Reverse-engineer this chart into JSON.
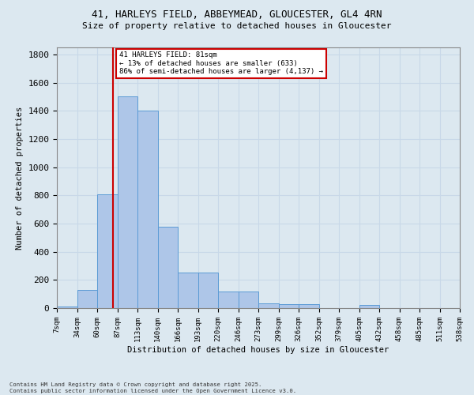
{
  "title_line1": "41, HARLEYS FIELD, ABBEYMEAD, GLOUCESTER, GL4 4RN",
  "title_line2": "Size of property relative to detached houses in Gloucester",
  "xlabel": "Distribution of detached houses by size in Gloucester",
  "ylabel": "Number of detached properties",
  "bin_labels": [
    "7sqm",
    "34sqm",
    "60sqm",
    "87sqm",
    "113sqm",
    "140sqm",
    "166sqm",
    "193sqm",
    "220sqm",
    "246sqm",
    "273sqm",
    "299sqm",
    "326sqm",
    "352sqm",
    "379sqm",
    "405sqm",
    "432sqm",
    "458sqm",
    "485sqm",
    "511sqm",
    "538sqm"
  ],
  "bar_values": [
    10,
    130,
    810,
    1500,
    1400,
    575,
    255,
    255,
    115,
    115,
    35,
    30,
    30,
    0,
    0,
    20,
    0,
    0,
    0,
    0
  ],
  "bar_color": "#aec6e8",
  "bar_edge_color": "#5b9bd5",
  "vline_x": 81,
  "bin_edges_sqm": [
    7,
    34,
    60,
    87,
    113,
    140,
    166,
    193,
    220,
    246,
    273,
    299,
    326,
    352,
    379,
    405,
    432,
    458,
    485,
    511,
    538
  ],
  "annotation_line1": "41 HARLEYS FIELD: 81sqm",
  "annotation_line2": "← 13% of detached houses are smaller (633)",
  "annotation_line3": "86% of semi-detached houses are larger (4,137) →",
  "annotation_box_color": "#ffffff",
  "annotation_box_edge": "#cc0000",
  "vline_color": "#cc0000",
  "ylim": [
    0,
    1850
  ],
  "yticks": [
    0,
    200,
    400,
    600,
    800,
    1000,
    1200,
    1400,
    1600,
    1800
  ],
  "grid_color": "#c8d8e8",
  "bg_color": "#dce8f0",
  "footnote_line1": "Contains HM Land Registry data © Crown copyright and database right 2025.",
  "footnote_line2": "Contains public sector information licensed under the Open Government Licence v3.0."
}
